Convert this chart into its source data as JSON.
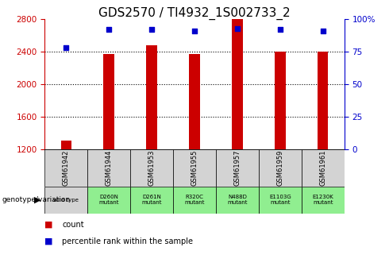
{
  "title": "GDS2570 / TI4932_1S002733_2",
  "samples": [
    "GSM61942",
    "GSM61944",
    "GSM61953",
    "GSM61955",
    "GSM61957",
    "GSM61959",
    "GSM61961"
  ],
  "genotype_labels": [
    "wild type",
    "D260N\nmutant",
    "D261N\nmutant",
    "R320C\nmutant",
    "N488D\nmutant",
    "E1103G\nmutant",
    "E1230K\nmutant"
  ],
  "counts": [
    1310,
    2370,
    2480,
    2370,
    2800,
    2400,
    2400
  ],
  "percentile_ranks": [
    78,
    92,
    92,
    91,
    93,
    92,
    91
  ],
  "ylim_left": [
    1200,
    2800
  ],
  "ylim_right": [
    0,
    100
  ],
  "yticks_left": [
    1200,
    1600,
    2000,
    2400,
    2800
  ],
  "yticks_right": [
    0,
    25,
    50,
    75,
    100
  ],
  "bar_color": "#cc0000",
  "dot_color": "#0000cc",
  "title_fontsize": 11,
  "tick_fontsize": 7.5,
  "left_color": "#cc0000",
  "right_color": "#0000cc",
  "grid_color": "black",
  "bg_color": "#ffffff",
  "genotype_bg_gray": "#d3d3d3",
  "genotype_bg_green": "#90ee90",
  "bar_width": 0.25
}
